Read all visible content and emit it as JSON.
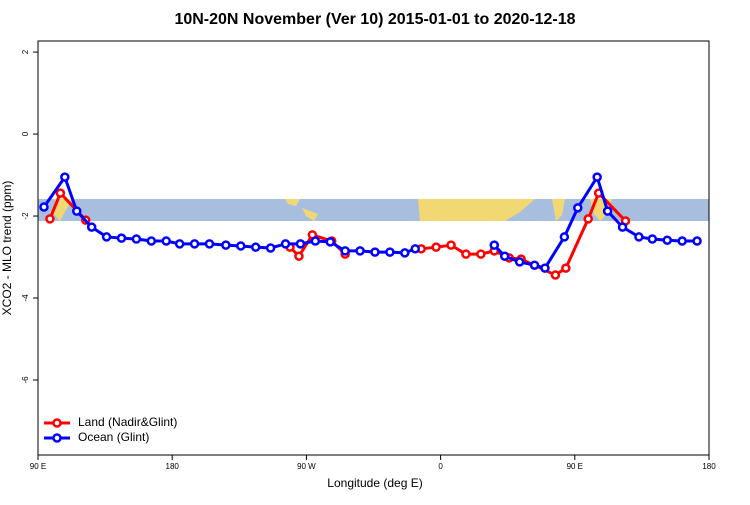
{
  "chart_data": {
    "type": "line",
    "title": "10N-20N November (Ver 10)   2015-01-01 to 2020-12-18",
    "xlabel": "Longitude (deg E)",
    "ylabel": "XCO2 - MLO trend (ppm)",
    "xlim": [
      90,
      540
    ],
    "ylim": [
      -7.83,
      2.27
    ],
    "xticks": [
      {
        "value": 90,
        "label": "90 E"
      },
      180,
      {
        "value": 270,
        "label": "90 W"
      },
      {
        "value": 360,
        "label": "0"
      },
      {
        "value": 450,
        "label": "90 E"
      },
      {
        "value": 540,
        "label": "180"
      }
    ],
    "yticks": [
      2,
      0,
      -2,
      -4,
      -6
    ],
    "legend": "bottom-left",
    "series": [
      {
        "name": "Land (Nadir&Glint)",
        "color": "#ff0000",
        "x": [
          98,
          105,
          122,
          190,
          259,
          265,
          274,
          287,
          296,
          320,
          347,
          357,
          367,
          377,
          387,
          396,
          406,
          414,
          437,
          444,
          459,
          466,
          484
        ],
        "values": [
          -2.07,
          -1.44,
          -2.1,
          null,
          -2.76,
          -2.98,
          -2.46,
          -2.61,
          -2.93,
          null,
          -2.8,
          -2.76,
          -2.71,
          -2.93,
          -2.93,
          -2.85,
          -3.02,
          -3.05,
          -3.44,
          -3.27,
          -2.07,
          -1.44,
          -2.12
        ]
      },
      {
        "name": "Ocean (Glint)",
        "color": "#0000ff",
        "x": [
          94,
          108,
          116,
          126,
          136,
          146,
          156,
          166,
          176,
          185,
          195,
          205,
          216,
          226,
          236,
          246,
          256,
          266,
          276,
          286,
          296,
          306,
          316,
          326,
          336,
          343,
          370,
          396,
          403,
          413,
          423,
          430,
          443,
          452,
          465,
          472,
          482,
          493,
          502,
          512,
          522,
          532
        ],
        "values": [
          -1.78,
          -1.05,
          -1.88,
          -2.27,
          -2.51,
          -2.54,
          -2.56,
          -2.61,
          -2.61,
          -2.68,
          -2.68,
          -2.68,
          -2.71,
          -2.73,
          -2.76,
          -2.78,
          -2.68,
          -2.68,
          -2.61,
          -2.63,
          -2.85,
          -2.85,
          -2.88,
          -2.88,
          -2.9,
          -2.8,
          null,
          -2.71,
          -2.98,
          -3.12,
          -3.2,
          -3.27,
          -2.51,
          -1.8,
          -1.05,
          -1.88,
          -2.27,
          -2.51,
          -2.56,
          -2.59,
          -2.61,
          -2.61
        ]
      }
    ]
  }
}
